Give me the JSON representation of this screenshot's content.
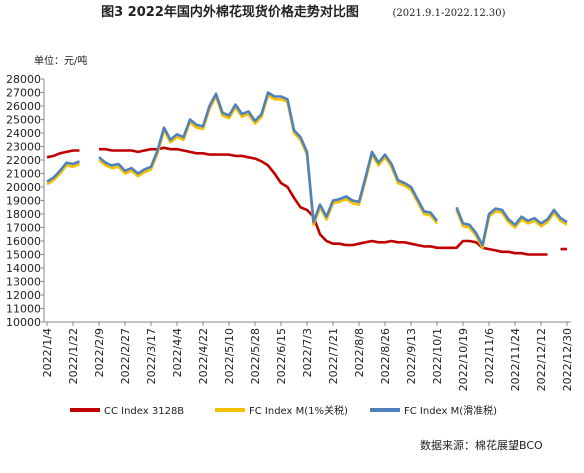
{
  "chart_data": {
    "type": "line",
    "title": "图3 2022年国内外棉花现货价格走势对比图",
    "subtitle": "(2021.9.1-2022.12.30)",
    "y_label": "单位：元/吨",
    "source": "数据来源：棉花展望BCO",
    "categories": [
      "2022/1/4",
      null,
      null,
      null,
      "2022/1/22",
      null,
      null,
      null,
      "2022/2/9",
      null,
      null,
      null,
      "2022/2/27",
      null,
      null,
      null,
      "2022/3/17",
      null,
      null,
      null,
      "2022/4/4",
      null,
      null,
      null,
      "2022/4/22",
      null,
      null,
      null,
      "2022/5/10",
      null,
      null,
      null,
      "2022/5/28",
      null,
      null,
      null,
      "2022/6/15",
      null,
      null,
      null,
      "2022/7/3",
      null,
      null,
      null,
      "2022/7/21",
      null,
      null,
      null,
      "2022/8/8",
      null,
      null,
      null,
      "2022/8/26",
      null,
      null,
      null,
      "2022/9/13",
      null,
      null,
      null,
      "2022/10/1",
      null,
      null,
      null,
      "2022/10/19",
      null,
      null,
      null,
      "2022/11/6",
      null,
      null,
      null,
      "2022/11/24",
      null,
      null,
      null,
      "2022/12/12",
      null,
      null,
      null,
      "2022/12/30"
    ],
    "series": [
      {
        "name": "CC Index 3128B",
        "color": "#c00000",
        "values": [
          22200,
          22300,
          22500,
          22600,
          22700,
          22700,
          null,
          null,
          22800,
          22800,
          22700,
          22700,
          22700,
          22700,
          22600,
          22700,
          22800,
          22800,
          22900,
          22800,
          22800,
          22700,
          22600,
          22500,
          22500,
          22400,
          22400,
          22400,
          22400,
          22300,
          22300,
          22200,
          22100,
          21900,
          21600,
          21000,
          20300,
          20000,
          19200,
          18500,
          18300,
          17800,
          16500,
          16000,
          15800,
          15800,
          15700,
          15700,
          15800,
          15900,
          16000,
          15900,
          15900,
          16000,
          15900,
          15900,
          15800,
          15700,
          15600,
          15600,
          15500,
          15500,
          15500,
          15500,
          16000,
          16000,
          15900,
          15500,
          15400,
          15300,
          15200,
          15200,
          15100,
          15100,
          15000,
          15000,
          15000,
          15000,
          null,
          15400,
          15400
        ]
      },
      {
        "name": "FC Index M(1%关税)",
        "color": "#f5c000",
        "values": [
          20200,
          20500,
          21000,
          21600,
          21500,
          21700,
          null,
          null,
          22000,
          21600,
          21400,
          21500,
          21000,
          21200,
          20800,
          21100,
          21300,
          22500,
          24200,
          23300,
          23700,
          23500,
          24800,
          24400,
          24300,
          25800,
          26700,
          25300,
          25100,
          25900,
          25200,
          25400,
          24700,
          25200,
          26800,
          26500,
          26500,
          26300,
          24000,
          23500,
          22400,
          17200,
          18500,
          17600,
          18800,
          18900,
          19100,
          18800,
          18700,
          20500,
          22400,
          21600,
          22200,
          21500,
          20300,
          20100,
          19800,
          18900,
          18000,
          17900,
          17300,
          null,
          null,
          18300,
          17100,
          17000,
          16400,
          15500,
          17800,
          18200,
          18100,
          17400,
          17000,
          17600,
          17300,
          17500,
          17100,
          17400,
          18100,
          17500,
          17200
        ]
      },
      {
        "name": "FC Index M(滑准税)",
        "color": "#4f81bd",
        "values": [
          20400,
          20700,
          21200,
          21800,
          21700,
          21900,
          null,
          null,
          22200,
          21800,
          21600,
          21700,
          21200,
          21400,
          21000,
          21300,
          21500,
          22700,
          24400,
          23500,
          23900,
          23700,
          25000,
          24600,
          24500,
          26000,
          26900,
          25500,
          25300,
          26100,
          25400,
          25600,
          24900,
          25400,
          27000,
          26700,
          26700,
          26500,
          24200,
          23700,
          22600,
          17400,
          18700,
          17800,
          19000,
          19100,
          19300,
          19000,
          18900,
          20700,
          22600,
          21800,
          22400,
          21700,
          20500,
          20300,
          20000,
          19100,
          18200,
          18100,
          17500,
          null,
          null,
          18500,
          17300,
          17200,
          16600,
          15700,
          18000,
          18400,
          18300,
          17600,
          17200,
          17800,
          17500,
          17700,
          17300,
          17600,
          18300,
          17700,
          17400
        ]
      }
    ],
    "ylim": [
      10000,
      28000
    ],
    "yticks": [
      10000,
      11000,
      12000,
      13000,
      14000,
      15000,
      16000,
      17000,
      18000,
      19000,
      20000,
      21000,
      22000,
      23000,
      24000,
      25000,
      26000,
      27000,
      28000
    ],
    "grid": false
  }
}
